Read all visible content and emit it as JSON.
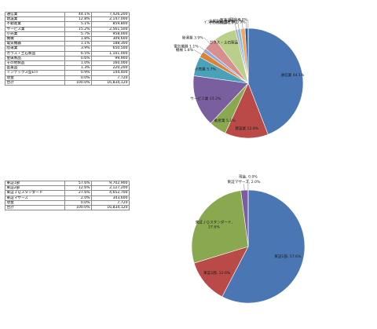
{
  "chart_data": [
    {
      "type": "pie",
      "table_headers": [],
      "categories": [
        "通信業",
        "建設業",
        "不動産業",
        "サービス業",
        "小売業",
        "機械",
        "電気機器",
        "陸運業",
        "ガラス・土石製品",
        "金属製品",
        "その他製品",
        "医薬品",
        "インデックス型ETF",
        "現金"
      ],
      "percent_labels": [
        "44.1%",
        "12.8%",
        "5.1%",
        "15.2%",
        "5.7%",
        "1.8%",
        "1.1%",
        "3.9%",
        "6.5%",
        "0.6%",
        "1.0%",
        "1.3%",
        "0.9%",
        "0.0%"
      ],
      "amount_labels": [
        "7,426,200",
        "2,147,000",
        "859,800",
        "2,561,500",
        "958,000",
        "309,600",
        "188,300",
        "650,500",
        "1,101,000",
        "99,900",
        "160,000",
        "220,200",
        "144,400",
        "7,720"
      ],
      "values": [
        7426200,
        2147000,
        859800,
        2561500,
        958000,
        309600,
        188300,
        650500,
        1101000,
        99900,
        160000,
        220200,
        144400,
        7720
      ],
      "total_label": "合計",
      "total_percent": "100.0%",
      "total_amount": "16,834,120",
      "slice_labels": [
        "通信業 44.1%",
        "建設業 12.8%",
        "不動産業 5.1%",
        "サービス業 15.2%",
        "小売業 5.7%",
        "機械 1.8%",
        "電気機器 1.1%",
        "陸運業 3.9%",
        "ガラス・土石製品 6.5%",
        "金属製品 0.6%",
        "その他製品 1.0%",
        "医薬品 1.3%",
        "インデックス型ETF 0.9%",
        "現金 0.0%"
      ],
      "colors": [
        "#4a77b4",
        "#b94a48",
        "#8aa84f",
        "#7a5f9f",
        "#4aa1b8",
        "#d9843a",
        "#93aad4",
        "#d68f8e",
        "#b9cf8a",
        "#ad9bc7",
        "#88c4d7",
        "#f2a766",
        "#2e5a9a",
        "#8f3130"
      ]
    },
    {
      "type": "pie",
      "categories": [
        "東証1部",
        "東証2部",
        "東証ＪＱスタンダード",
        "東証マザーズ",
        "現金"
      ],
      "percent_labels": [
        "57.6%",
        "12.6%",
        "27.6%",
        "2.0%",
        "0.0%"
      ],
      "amount_labels": [
        "9,702,900",
        "2,127,200",
        "4,652,700",
        "343,600",
        "7,720"
      ],
      "values": [
        9702900,
        2127200,
        4652700,
        343600,
        7720
      ],
      "total_label": "合計",
      "total_percent": "100.0%",
      "total_amount": "16,834,120",
      "slice_labels": [
        [
          "東証1部, 57.6%"
        ],
        [
          "東証2部, 12.6%"
        ],
        [
          "東証ＪＱスタンダード,",
          "27.6%"
        ],
        [
          "東証マザーズ, 2.0%"
        ],
        [
          "現金, 0.0%"
        ]
      ],
      "colors": [
        "#4a77b4",
        "#b94a48",
        "#8aa84f",
        "#7a5f9f",
        "#4aa1b8"
      ]
    }
  ]
}
